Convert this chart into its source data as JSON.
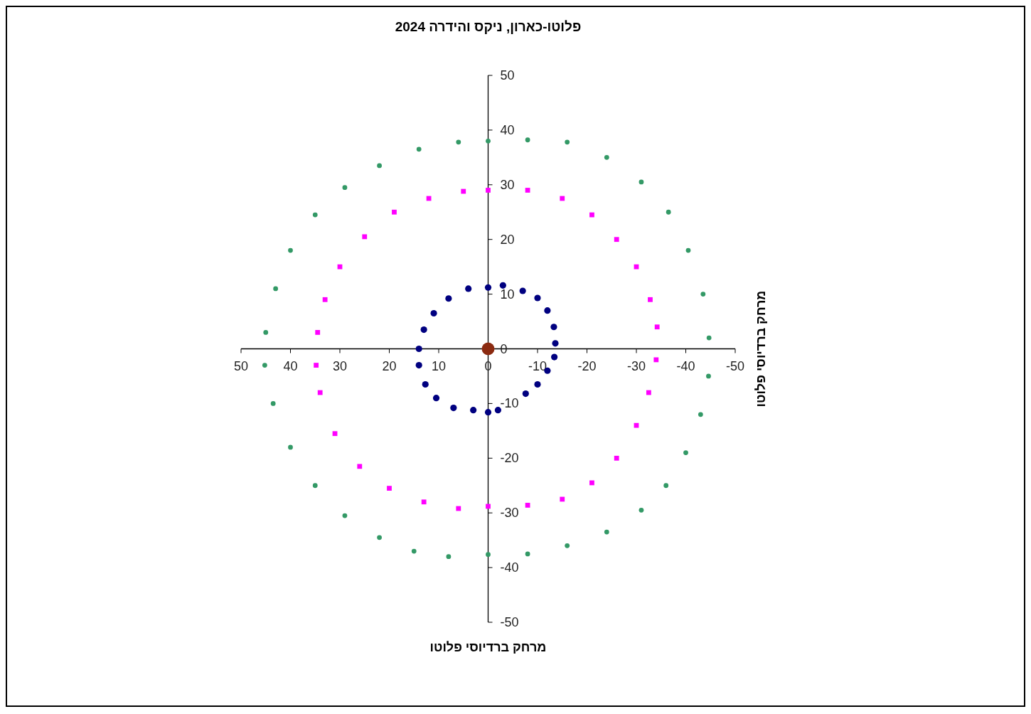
{
  "chart_data": {
    "type": "scatter",
    "title": "פלוטו-כארון,  ניקס והידרה 2024",
    "xlabel": "מרחק ברדיוסי פלוטו",
    "ylabel": "מרחק ברדיוסי פלוטו",
    "xlim": [
      50,
      -50
    ],
    "ylim": [
      -50,
      50
    ],
    "xticks": [
      50,
      40,
      30,
      20,
      10,
      0,
      -10,
      -20,
      -30,
      -40,
      -50
    ],
    "yticks": [
      -50,
      -40,
      -30,
      -20,
      -10,
      0,
      10,
      20,
      30,
      40,
      50
    ],
    "grid": false,
    "series": [
      {
        "color": "#339966",
        "marker": "circle",
        "x": [
          0,
          -8,
          -16,
          -24,
          -31,
          -36.5,
          -40.5,
          -43.5,
          -44.7,
          -44.6,
          -43,
          -40,
          -36,
          -31,
          -24,
          -16,
          -8,
          0,
          8,
          15,
          22,
          29,
          35,
          40,
          43.5,
          45.2,
          45,
          43,
          40,
          35,
          29,
          22,
          14,
          6
        ],
        "values": [
          38,
          38.2,
          37.8,
          35,
          30.5,
          25,
          18,
          10,
          2,
          -5,
          -12,
          -19,
          -25,
          -29.5,
          -33.5,
          -36,
          -37.5,
          -37.6,
          -38,
          -37,
          -34.5,
          -30.5,
          -25,
          -18,
          -10,
          -3,
          3,
          11,
          18,
          24.5,
          29.5,
          33.5,
          36.5,
          37.8
        ]
      },
      {
        "color": "#ff00ff",
        "marker": "square",
        "x": [
          0,
          -8,
          -15,
          -21,
          -26,
          -30,
          -32.8,
          -34.2,
          -34,
          -32.5,
          -30,
          -26,
          -21,
          -15,
          -8,
          0,
          6,
          13,
          20,
          26,
          31,
          34,
          34.8,
          34.5,
          33,
          30,
          25,
          19,
          12,
          5
        ],
        "values": [
          29,
          29,
          27.5,
          24.5,
          20,
          15,
          9,
          4,
          -2,
          -8,
          -14,
          -20,
          -24.5,
          -27.5,
          -28.6,
          -28.8,
          -29.2,
          -28,
          -25.5,
          -21.5,
          -15.5,
          -8,
          -3,
          3,
          9,
          15,
          20.5,
          25,
          27.5,
          28.8
        ]
      },
      {
        "color": "#000080",
        "marker": "circle",
        "x": [
          -7.6,
          -10,
          -12,
          -13.4,
          -13.6,
          -13.3,
          -12,
          -10,
          -7,
          -3,
          0,
          4,
          8,
          11,
          13,
          14,
          14,
          12.7,
          10.5,
          7,
          3,
          0,
          -2
        ],
        "values": [
          -8.2,
          -6.5,
          -4,
          -1.5,
          1,
          4,
          7,
          9.3,
          10.6,
          11.6,
          11.2,
          11,
          9.2,
          6.5,
          3.5,
          0,
          -3,
          -6.5,
          -9,
          -10.8,
          -11.2,
          -11.6,
          -11.2
        ]
      },
      {
        "color": "#8b2a10",
        "marker": "circle",
        "x": [
          0
        ],
        "values": [
          0
        ]
      }
    ]
  }
}
